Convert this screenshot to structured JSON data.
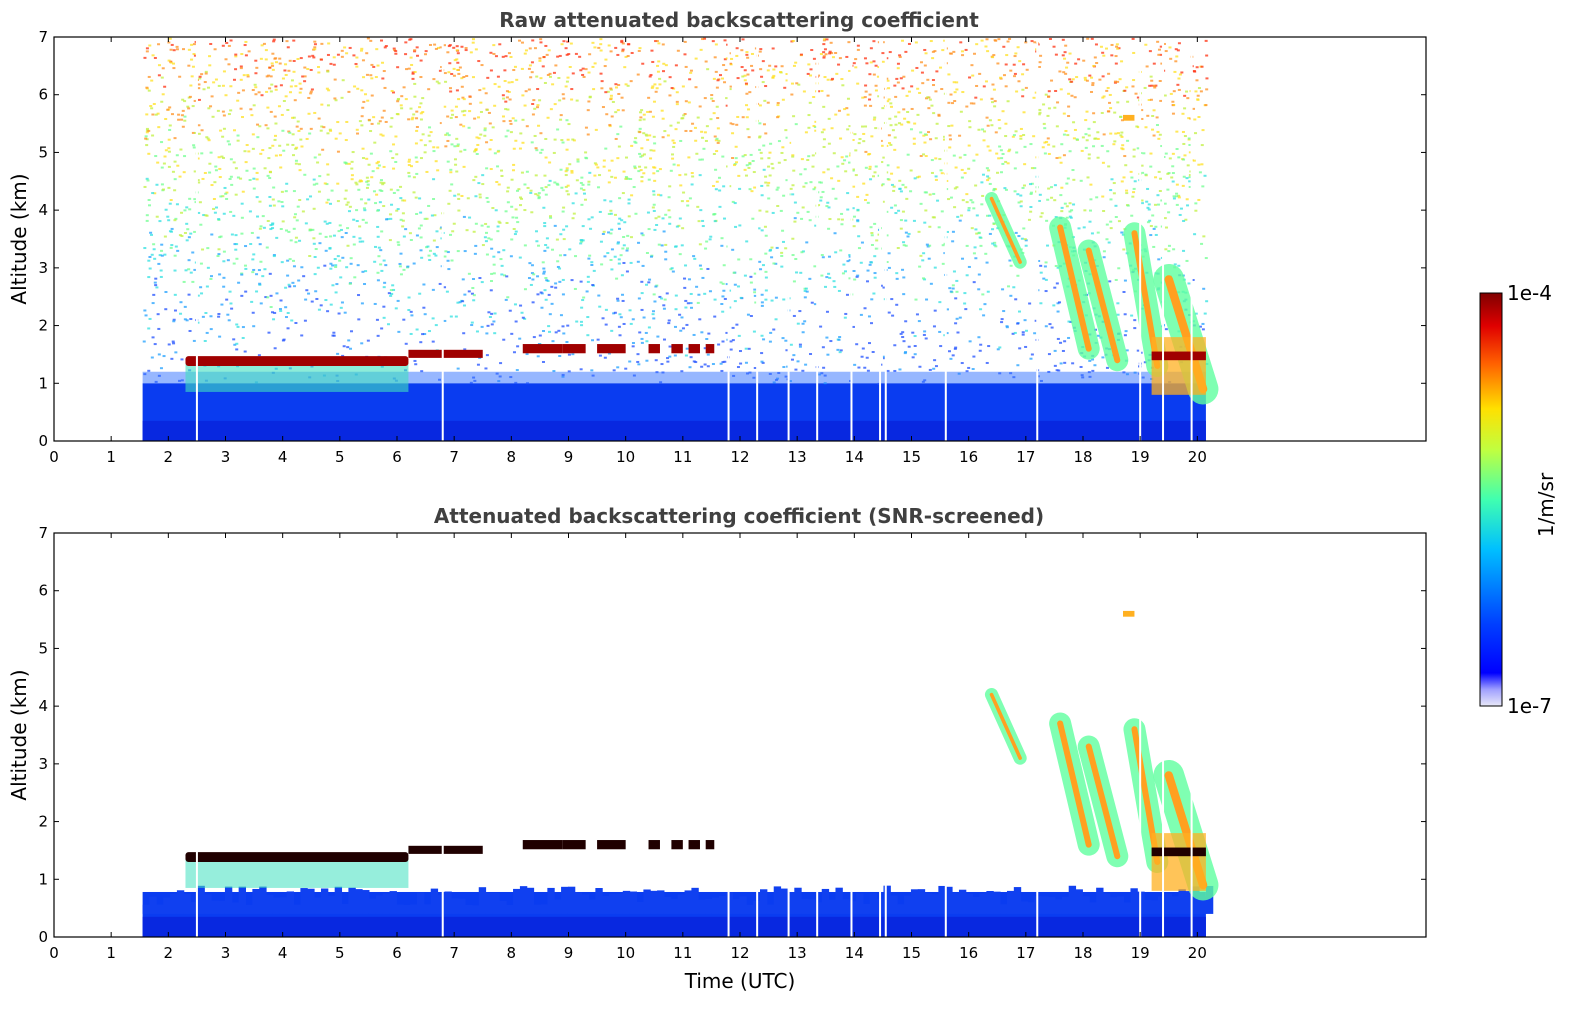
{
  "chart_data": [
    {
      "type": "heatmap",
      "title": "Raw attenuated backscattering coefficient",
      "xlabel": "",
      "ylabel": "Altitude (km)",
      "xlim": [
        0,
        24
      ],
      "ylim": [
        0,
        7
      ],
      "x_ticks": [
        0,
        1,
        2,
        3,
        4,
        5,
        6,
        7,
        8,
        9,
        10,
        11,
        12,
        13,
        14,
        15,
        16,
        17,
        18,
        19,
        20
      ],
      "y_ticks": [
        0,
        1,
        2,
        3,
        4,
        5,
        6,
        7
      ],
      "data_time_range": [
        1.55,
        20.15
      ],
      "screened": false,
      "features": [
        {
          "name": "boundary-layer",
          "x_range": [
            1.55,
            20.15
          ],
          "alt_range": [
            0,
            1.0
          ]
        },
        {
          "name": "cloud-layer-1",
          "x_range": [
            2.3,
            6.2
          ],
          "alt": 1.4
        },
        {
          "name": "cloud-layer-2",
          "x_range": [
            6.2,
            7.5
          ],
          "alt": 1.5
        },
        {
          "name": "cloud-layer-3",
          "x_range": [
            8.2,
            11.5
          ],
          "alt": 1.6
        },
        {
          "name": "virga-streaks",
          "x_range": [
            16.4,
            19.8
          ],
          "alt_range": [
            1.4,
            4.3
          ]
        },
        {
          "name": "low-cloud",
          "x_range": [
            19.2,
            20.15
          ],
          "alt": 1.5
        }
      ]
    },
    {
      "type": "heatmap",
      "title": "Attenuated backscattering coefficient (SNR-screened)",
      "xlabel": "Time (UTC)",
      "ylabel": "Altitude (km)",
      "xlim": [
        0,
        24
      ],
      "ylim": [
        0,
        7
      ],
      "x_ticks": [
        0,
        1,
        2,
        3,
        4,
        5,
        6,
        7,
        8,
        9,
        10,
        11,
        12,
        13,
        14,
        15,
        16,
        17,
        18,
        19,
        20
      ],
      "y_ticks": [
        0,
        1,
        2,
        3,
        4,
        5,
        6,
        7
      ],
      "data_time_range": [
        1.55,
        20.15
      ],
      "screened": true
    }
  ],
  "colorbar": {
    "label": "1/m/sr",
    "max_label": "1e-4",
    "min_label": "1e-7",
    "colors": [
      "#00007f",
      "#0000ff",
      "#0080ff",
      "#00ffff",
      "#80ff80",
      "#ffff00",
      "#ff8000",
      "#ff0000",
      "#800000"
    ]
  }
}
